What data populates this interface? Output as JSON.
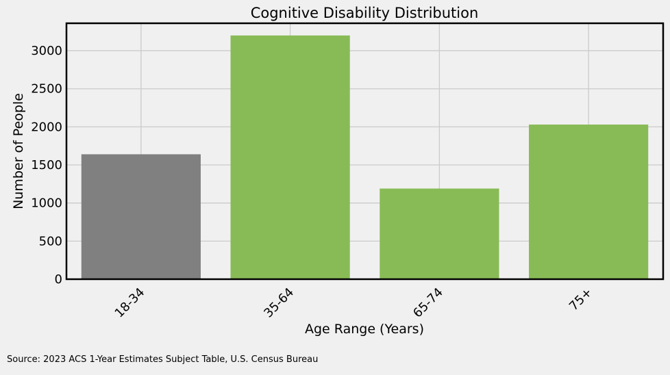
{
  "chart_data": {
    "type": "bar",
    "title": "Cognitive Disability Distribution",
    "xlabel": "Age Range (Years)",
    "ylabel": "Number of People",
    "categories": [
      "18-34",
      "35-64",
      "65-74",
      "75+"
    ],
    "values": [
      1640,
      3200,
      1190,
      2030
    ],
    "bar_colors": [
      "#808080",
      "#88bb55",
      "#88bb55",
      "#88bb55"
    ],
    "ylim": [
      0,
      3360
    ],
    "yticks": [
      0,
      500,
      1000,
      1500,
      2000,
      2500,
      3000
    ],
    "grid": true
  },
  "source": "Source: 2023 ACS 1-Year Estimates Subject Table, U.S. Census Bureau",
  "colors": {
    "background": "#f0f0f0",
    "grid": "#cbcbcb",
    "axis": "#000000"
  }
}
